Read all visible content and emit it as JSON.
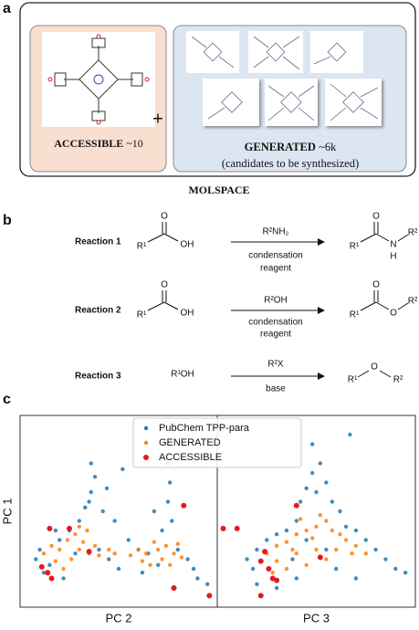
{
  "panel_a": {
    "label": "a",
    "accessible": {
      "name": "ACCESSIBLE",
      "count": "~10"
    },
    "plus": "+",
    "generated": {
      "name": "GENERATED",
      "count": "~6k",
      "note": "(candidates to be synthesized)"
    },
    "caption": "MOLSPACE"
  },
  "panel_b": {
    "label": "b",
    "reactions": [
      {
        "name": "Reaction 1",
        "reactant": {
          "o": "O",
          "r": "R¹",
          "oh": "OH"
        },
        "reagent": "R²NH₂",
        "conditions": [
          "condensation",
          "reagent"
        ],
        "product": {
          "o": "O",
          "r1": "R¹",
          "n": "N",
          "h": "H",
          "r2": "R²"
        }
      },
      {
        "name": "Reaction 2",
        "reactant": {
          "o": "O",
          "r": "R¹",
          "oh": "OH"
        },
        "reagent": "R²OH",
        "conditions": [
          "condensation",
          "reagent"
        ],
        "product": {
          "o": "O",
          "r1": "R¹",
          "o2": "O",
          "r2": "R²"
        }
      },
      {
        "name": "Reaction 3",
        "reactant": {
          "roh": "R¹OH"
        },
        "reagent": "R²X",
        "conditions": [
          "base"
        ],
        "product": {
          "r1": "R¹",
          "o": "O",
          "r2": "R²"
        }
      }
    ]
  },
  "panel_c": {
    "label": "c"
  },
  "chart_data": [
    {
      "type": "scatter",
      "ylabel": "PC 1",
      "xlabel": "PC 2",
      "legend": "upper center",
      "xlim": [
        0,
        100
      ],
      "ylim": [
        0,
        100
      ],
      "series": [
        {
          "name": "PubChem TPP-para",
          "color": "#1f77b4",
          "x": [
            10,
            15,
            20,
            25,
            30,
            33,
            36,
            38,
            35,
            28,
            40,
            45,
            50,
            12,
            18,
            42,
            48,
            55,
            60,
            65,
            72,
            75,
            76,
            75,
            74,
            77,
            80,
            85,
            88,
            90,
            70,
            62,
            8,
            22,
            44,
            52,
            36,
            78,
            95,
            68
          ],
          "values": [
            30,
            22,
            35,
            40,
            45,
            52,
            60,
            68,
            55,
            28,
            30,
            25,
            20,
            18,
            40,
            50,
            45,
            35,
            30,
            28,
            40,
            55,
            65,
            75,
            85,
            45,
            30,
            25,
            20,
            15,
            22,
            18,
            25,
            15,
            62,
            72,
            75,
            95,
            12,
            50
          ]
        },
        {
          "name": "GENERATED",
          "color": "#ff7f0e",
          "x": [
            12,
            16,
            20,
            24,
            28,
            30,
            26,
            18,
            22,
            32,
            35,
            38,
            40,
            45,
            48,
            30,
            34,
            60,
            64,
            68,
            70,
            72,
            74,
            78,
            80,
            66,
            62,
            76,
            82,
            56
          ],
          "values": [
            28,
            32,
            30,
            35,
            38,
            30,
            25,
            24,
            20,
            34,
            28,
            32,
            27,
            30,
            28,
            42,
            40,
            30,
            28,
            34,
            30,
            25,
            32,
            28,
            33,
            22,
            24,
            22,
            26,
            27
          ]
        },
        {
          "name": "ACCESSIBLE",
          "color": "#e31a1c",
          "x": [
            15,
            25,
            35,
            11,
            14,
            16,
            83,
            78,
            96
          ],
          "values": [
            41,
            41,
            29,
            21,
            18,
            15,
            53,
            10,
            6
          ]
        }
      ]
    },
    {
      "type": "scatter",
      "xlabel": "PC 3",
      "xlim": [
        0,
        100
      ],
      "ylim": [
        0,
        100
      ],
      "series": [
        {
          "color": "#1f77b4",
          "x": [
            15,
            20,
            25,
            30,
            35,
            40,
            42,
            45,
            48,
            50,
            52,
            55,
            58,
            62,
            65,
            70,
            75,
            80,
            85,
            90,
            95,
            20,
            30,
            40,
            60,
            70,
            45,
            55,
            48,
            67,
            18,
            38
          ],
          "values": [
            25,
            30,
            35,
            38,
            40,
            45,
            55,
            62,
            70,
            60,
            75,
            65,
            55,
            50,
            42,
            40,
            35,
            30,
            25,
            20,
            18,
            12,
            10,
            15,
            20,
            15,
            35,
            30,
            85,
            90,
            20,
            25
          ]
        },
        {
          "color": "#ff7f0e",
          "x": [
            25,
            30,
            35,
            40,
            45,
            50,
            55,
            58,
            62,
            65,
            70,
            60,
            50,
            40,
            30,
            35,
            45,
            55,
            68,
            75,
            42,
            52,
            48,
            38,
            28
          ],
          "values": [
            28,
            32,
            34,
            38,
            40,
            42,
            45,
            40,
            38,
            35,
            32,
            30,
            30,
            28,
            24,
            20,
            22,
            25,
            28,
            28,
            46,
            48,
            36,
            30,
            18
          ]
        },
        {
          "color": "#e31a1c",
          "x": [
            3,
            10,
            40,
            24,
            22,
            26,
            28,
            30,
            22,
            52
          ],
          "values": [
            41,
            41,
            53,
            29,
            24,
            20,
            15,
            14,
            6,
            26
          ]
        }
      ]
    }
  ]
}
